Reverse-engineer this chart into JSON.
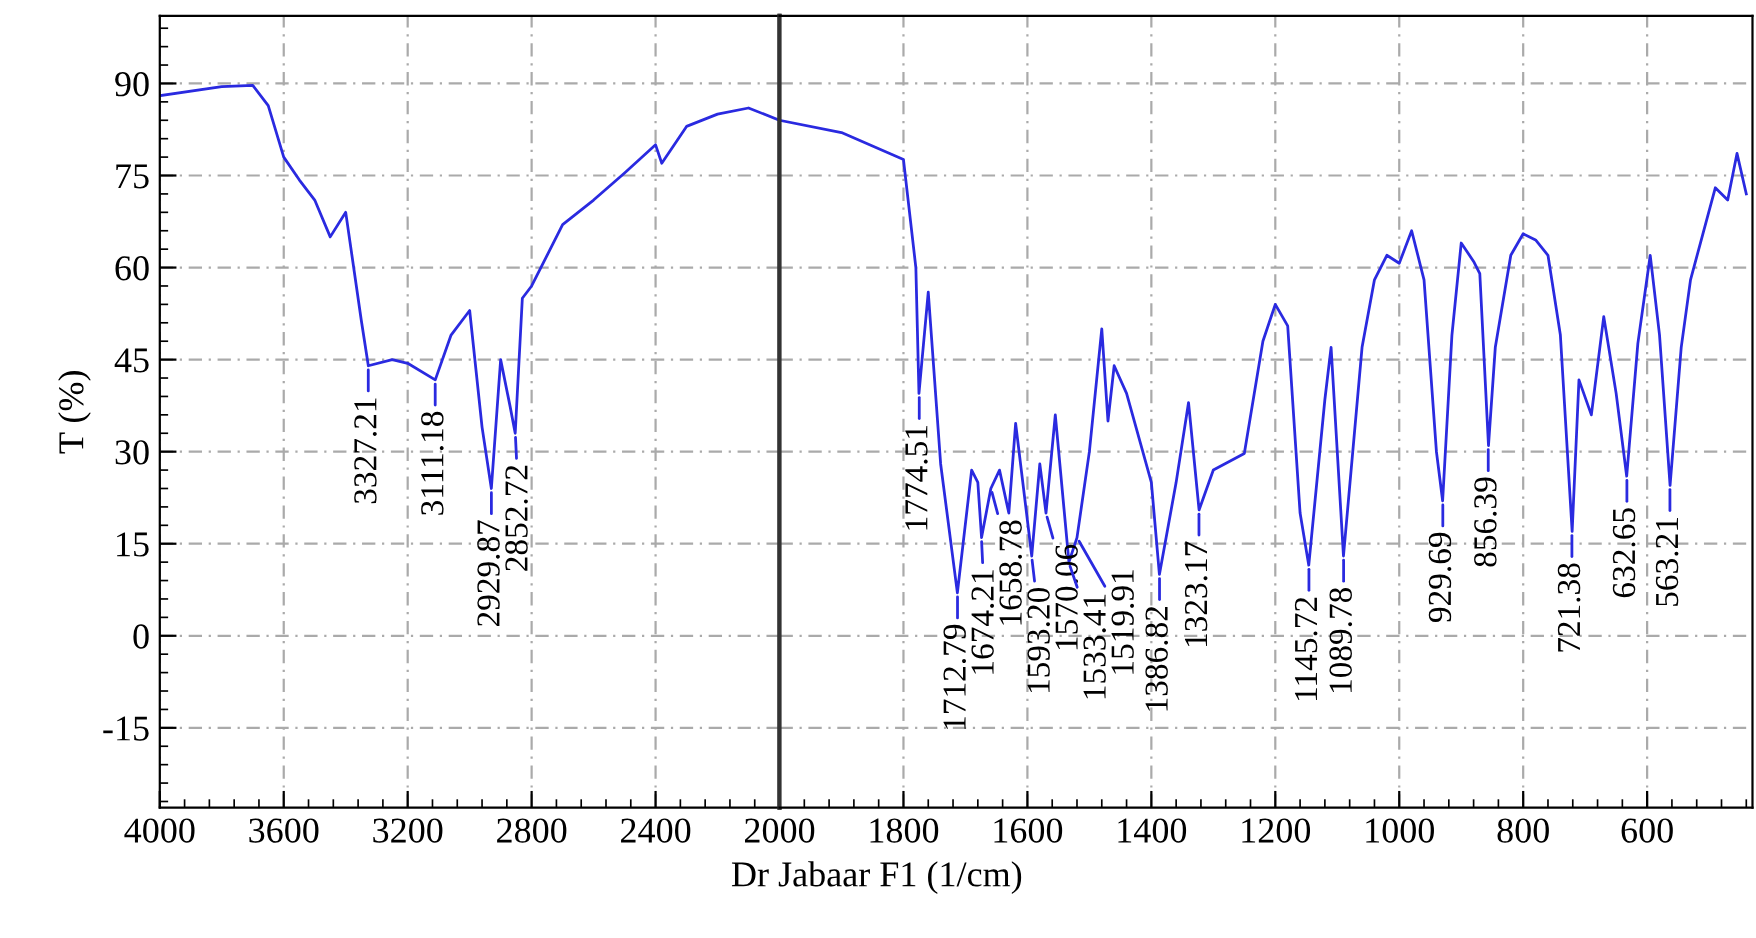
{
  "chart_data": [
    {
      "type": "line",
      "xlabel": "Dr Jabaar F1 (1/cm)",
      "ylabel": "T (%)",
      "xlim": [
        4000,
        2000
      ],
      "ylim": [
        -28,
        101
      ],
      "xticks": [
        4000,
        3600,
        3200,
        2800,
        2400,
        2000
      ],
      "yticks": [
        -15,
        0,
        15,
        30,
        45,
        60,
        75,
        90
      ],
      "grid": true,
      "marker": "none",
      "line_style": "solid",
      "series": [
        {
          "color": "#2a2ae0",
          "x": [
            4000,
            3800,
            3700,
            3650,
            3600,
            3550,
            3500,
            3450,
            3400,
            3350,
            3327,
            3250,
            3200,
            3111,
            3060,
            3000,
            2960,
            2930,
            2900,
            2870,
            2853,
            2830,
            2800,
            2700,
            2600,
            2500,
            2400,
            2380,
            2300,
            2200,
            2100,
            2000
          ],
          "values": [
            88,
            89.5,
            89.7,
            86.4,
            78,
            74.3,
            71,
            65,
            69,
            51.5,
            44,
            45,
            44.4,
            41.7,
            49,
            53,
            34,
            24,
            45,
            37.5,
            33,
            55,
            57,
            67,
            71,
            75.4,
            80,
            77,
            83,
            85,
            86,
            84
          ]
        }
      ],
      "annotations": [
        {
          "text": "3327.21",
          "x": 3327.21,
          "y": 44
        },
        {
          "text": "3111.18",
          "x": 3111.18,
          "y": 41.7
        },
        {
          "text": "2929.87",
          "x": 2929.87,
          "y": 24
        },
        {
          "text": "2852.72",
          "x": 2852.72,
          "y": 33
        }
      ]
    },
    {
      "type": "line",
      "xlim": [
        2000,
        430
      ],
      "ylim": [
        -28,
        101
      ],
      "xticks": [
        1800,
        1600,
        1400,
        1200,
        1000,
        800,
        600
      ],
      "yticks": [
        -15,
        0,
        15,
        30,
        45,
        60,
        75,
        90
      ],
      "tick_labels": "x",
      "grid": true,
      "marker": "none",
      "line_style": "solid",
      "series": [
        {
          "color": "#2a2ae0",
          "x": [
            2000,
            1900,
            1800,
            1780,
            1775,
            1760,
            1740,
            1713,
            1690,
            1680,
            1674,
            1659,
            1645,
            1630,
            1619,
            1593,
            1580,
            1570,
            1555,
            1533,
            1520,
            1500,
            1480,
            1470,
            1460,
            1440,
            1400,
            1387,
            1360,
            1340,
            1323,
            1300,
            1250,
            1220,
            1200,
            1180,
            1160,
            1146,
            1120,
            1110,
            1090,
            1060,
            1040,
            1020,
            1000,
            980,
            960,
            940,
            930,
            915,
            900,
            880,
            870,
            856,
            845,
            820,
            800,
            780,
            760,
            740,
            721,
            710,
            690,
            670,
            650,
            633,
            615,
            595,
            580,
            563,
            545,
            530,
            510,
            490,
            470,
            455,
            440
          ],
          "values": [
            84,
            82,
            77.6,
            60,
            39.5,
            56,
            28,
            7,
            27,
            25,
            16,
            24,
            27,
            20,
            34.6,
            13,
            28,
            20,
            36,
            12,
            16,
            30,
            50,
            35,
            44,
            39.5,
            25,
            10,
            25,
            38,
            20.5,
            27,
            29.7,
            48,
            54,
            50.5,
            20,
            11.5,
            38.5,
            47,
            13,
            47,
            58,
            62,
            60.7,
            66,
            58,
            30,
            22,
            49,
            64,
            61,
            59,
            31,
            47,
            62,
            65.5,
            64.5,
            62,
            49,
            17,
            41.7,
            36,
            52,
            39.5,
            26,
            47.6,
            62,
            49,
            24.5,
            47,
            58,
            65.5,
            73,
            71,
            78.6,
            72
          ]
        }
      ],
      "annotations": [
        {
          "text": "1774.51",
          "x": 1774.51,
          "y": 39.5
        },
        {
          "text": "1712.79",
          "x": 1712.79,
          "y": 7
        },
        {
          "text": "1674.21",
          "x": 1674.21,
          "y": 16
        },
        {
          "text": "1658.78",
          "x": 1658.78,
          "y": 24
        },
        {
          "text": "1593.20",
          "x": 1593.2,
          "y": 13
        },
        {
          "text": "1570.06",
          "x": 1570.06,
          "y": 20
        },
        {
          "text": "1533.41",
          "x": 1533.41,
          "y": 12
        },
        {
          "text": "1519.91",
          "x": 1519.91,
          "y": 16
        },
        {
          "text": "1386.82",
          "x": 1386.82,
          "y": 10
        },
        {
          "text": "1323.17",
          "x": 1323.17,
          "y": 20.5
        },
        {
          "text": "1145.72",
          "x": 1145.72,
          "y": 11.5
        },
        {
          "text": "1089.78",
          "x": 1089.78,
          "y": 13
        },
        {
          "text": "929.69",
          "x": 929.69,
          "y": 22
        },
        {
          "text": "856.39",
          "x": 856.39,
          "y": 31
        },
        {
          "text": "721.38",
          "x": 721.38,
          "y": 17
        },
        {
          "text": "632.65",
          "x": 632.65,
          "y": 26
        },
        {
          "text": "563.21",
          "x": 563.21,
          "y": 24.5
        }
      ]
    }
  ]
}
